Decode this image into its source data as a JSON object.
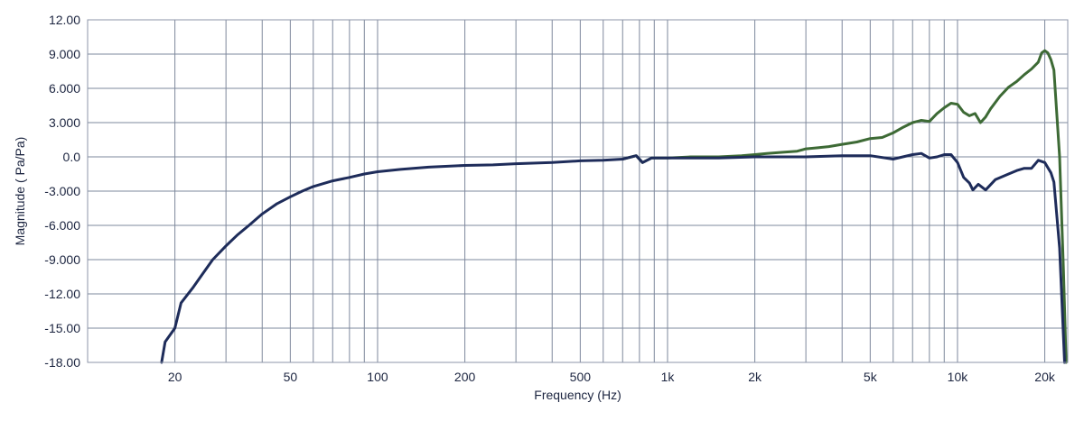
{
  "chart_data": {
    "type": "line",
    "title": "",
    "xlabel": "Frequency (Hz)",
    "ylabel": "Magnitude ( Pa/Pa)",
    "x_scale": "log",
    "xlim": [
      10,
      24000
    ],
    "ylim": [
      -18,
      12
    ],
    "grid": true,
    "colors": {
      "grid": "#7e889c",
      "frame": "#8d96a8",
      "text": "#1c2540"
    },
    "y_ticks": [
      {
        "value": 12,
        "label": "12.00"
      },
      {
        "value": 9,
        "label": "9.000"
      },
      {
        "value": 6,
        "label": "6.000"
      },
      {
        "value": 3,
        "label": "3.000"
      },
      {
        "value": 0,
        "label": "0.0"
      },
      {
        "value": -3,
        "label": "-3.000"
      },
      {
        "value": -6,
        "label": "-6.000"
      },
      {
        "value": -9,
        "label": "-9.000"
      },
      {
        "value": -12,
        "label": "-12.00"
      },
      {
        "value": -15,
        "label": "-15.00"
      },
      {
        "value": -18,
        "label": "-18.00"
      }
    ],
    "x_ticks": [
      {
        "value": 20,
        "label": "20"
      },
      {
        "value": 50,
        "label": "50"
      },
      {
        "value": 100,
        "label": "100"
      },
      {
        "value": 200,
        "label": "200"
      },
      {
        "value": 500,
        "label": "500"
      },
      {
        "value": 1000,
        "label": "1k"
      },
      {
        "value": 2000,
        "label": "2k"
      },
      {
        "value": 5000,
        "label": "5k"
      },
      {
        "value": 10000,
        "label": "10k"
      },
      {
        "value": 20000,
        "label": "20k"
      }
    ],
    "x_gridlines": [
      10,
      20,
      30,
      40,
      50,
      60,
      70,
      80,
      90,
      100,
      200,
      300,
      400,
      500,
      600,
      700,
      800,
      900,
      1000,
      2000,
      3000,
      4000,
      5000,
      6000,
      7000,
      8000,
      9000,
      10000,
      20000
    ],
    "series": [
      {
        "color": "#3d6a35",
        "points": [
          [
            700,
            -0.2
          ],
          [
            780,
            0.1
          ],
          [
            820,
            -0.5
          ],
          [
            880,
            -0.1
          ],
          [
            1000,
            -0.1
          ],
          [
            1200,
            0.0
          ],
          [
            1500,
            0.0
          ],
          [
            1800,
            0.1
          ],
          [
            2000,
            0.2
          ],
          [
            2200,
            0.3
          ],
          [
            2500,
            0.4
          ],
          [
            2800,
            0.5
          ],
          [
            3000,
            0.7
          ],
          [
            3300,
            0.8
          ],
          [
            3600,
            0.9
          ],
          [
            4000,
            1.1
          ],
          [
            4500,
            1.3
          ],
          [
            5000,
            1.6
          ],
          [
            5500,
            1.7
          ],
          [
            6000,
            2.1
          ],
          [
            6500,
            2.6
          ],
          [
            7000,
            3.0
          ],
          [
            7500,
            3.2
          ],
          [
            8000,
            3.1
          ],
          [
            8500,
            3.8
          ],
          [
            9000,
            4.3
          ],
          [
            9500,
            4.7
          ],
          [
            10000,
            4.6
          ],
          [
            10500,
            3.9
          ],
          [
            11000,
            3.6
          ],
          [
            11500,
            3.8
          ],
          [
            12000,
            3.0
          ],
          [
            12500,
            3.5
          ],
          [
            13000,
            4.2
          ],
          [
            14000,
            5.3
          ],
          [
            15000,
            6.1
          ],
          [
            16000,
            6.6
          ],
          [
            17000,
            7.2
          ],
          [
            18000,
            7.7
          ],
          [
            19000,
            8.3
          ],
          [
            19500,
            9.1
          ],
          [
            20000,
            9.3
          ],
          [
            20500,
            9.1
          ],
          [
            21000,
            8.5
          ],
          [
            21500,
            7.6
          ],
          [
            22500,
            0.0
          ],
          [
            23200,
            -10.0
          ],
          [
            23700,
            -18.0
          ]
        ]
      },
      {
        "color": "#1e2c5a",
        "points": [
          [
            18,
            -18.0
          ],
          [
            18.5,
            -16.2
          ],
          [
            20,
            -15.0
          ],
          [
            21,
            -12.8
          ],
          [
            23,
            -11.5
          ],
          [
            25,
            -10.2
          ],
          [
            27,
            -9.0
          ],
          [
            30,
            -7.8
          ],
          [
            33,
            -6.8
          ],
          [
            36,
            -6.0
          ],
          [
            40,
            -5.0
          ],
          [
            45,
            -4.1
          ],
          [
            50,
            -3.5
          ],
          [
            55,
            -3.0
          ],
          [
            60,
            -2.6
          ],
          [
            70,
            -2.1
          ],
          [
            80,
            -1.8
          ],
          [
            90,
            -1.5
          ],
          [
            100,
            -1.3
          ],
          [
            120,
            -1.1
          ],
          [
            150,
            -0.9
          ],
          [
            200,
            -0.75
          ],
          [
            250,
            -0.7
          ],
          [
            300,
            -0.6
          ],
          [
            400,
            -0.5
          ],
          [
            500,
            -0.35
          ],
          [
            600,
            -0.3
          ],
          [
            700,
            -0.2
          ],
          [
            780,
            0.1
          ],
          [
            820,
            -0.5
          ],
          [
            880,
            -0.1
          ],
          [
            1000,
            -0.1
          ],
          [
            1500,
            -0.1
          ],
          [
            2000,
            0.0
          ],
          [
            3000,
            0.0
          ],
          [
            4000,
            0.1
          ],
          [
            5000,
            0.1
          ],
          [
            6000,
            -0.2
          ],
          [
            7000,
            0.2
          ],
          [
            7500,
            0.3
          ],
          [
            8000,
            -0.1
          ],
          [
            8500,
            0.0
          ],
          [
            9000,
            0.2
          ],
          [
            9500,
            0.2
          ],
          [
            10000,
            -0.5
          ],
          [
            10500,
            -1.8
          ],
          [
            11000,
            -2.3
          ],
          [
            11300,
            -2.9
          ],
          [
            11800,
            -2.4
          ],
          [
            12500,
            -2.9
          ],
          [
            13500,
            -2.0
          ],
          [
            15000,
            -1.5
          ],
          [
            16000,
            -1.2
          ],
          [
            17000,
            -1.0
          ],
          [
            18000,
            -1.0
          ],
          [
            19000,
            -0.3
          ],
          [
            20000,
            -0.5
          ],
          [
            21000,
            -1.4
          ],
          [
            21500,
            -2.2
          ],
          [
            22500,
            -8.0
          ],
          [
            23400,
            -18.0
          ]
        ]
      }
    ]
  }
}
